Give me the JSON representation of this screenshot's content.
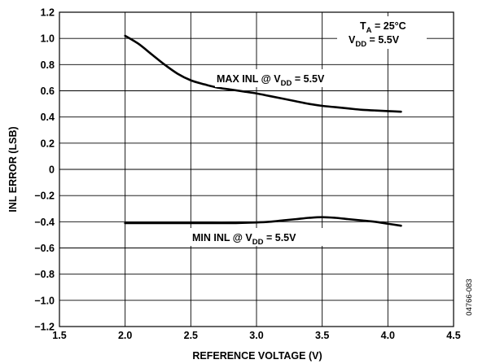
{
  "chart_data": {
    "type": "line",
    "xlabel": "REFERENCE VOLTAGE (V)",
    "ylabel": "INL ERROR (LSB)",
    "xlim": [
      1.5,
      4.5
    ],
    "ylim": [
      -1.2,
      1.2
    ],
    "xticks": [
      1.5,
      2.0,
      2.5,
      3.0,
      3.5,
      4.0,
      4.5
    ],
    "yticks": [
      -1.2,
      -1.0,
      -0.8,
      -0.6,
      -0.4,
      -0.2,
      0,
      0.2,
      0.4,
      0.6,
      0.8,
      1.0,
      1.2
    ],
    "grid": true,
    "series": [
      {
        "name": "MAX INL",
        "x": [
          2.0,
          2.1,
          2.2,
          2.3,
          2.4,
          2.5,
          2.6,
          2.7,
          2.8,
          2.9,
          3.0,
          3.1,
          3.2,
          3.3,
          3.4,
          3.5,
          3.6,
          3.7,
          3.8,
          3.9,
          4.0,
          4.1
        ],
        "y": [
          1.02,
          0.96,
          0.88,
          0.8,
          0.73,
          0.68,
          0.65,
          0.625,
          0.61,
          0.595,
          0.58,
          0.56,
          0.54,
          0.52,
          0.5,
          0.485,
          0.475,
          0.465,
          0.455,
          0.45,
          0.445,
          0.44
        ]
      },
      {
        "name": "MIN INL",
        "x": [
          2.0,
          2.2,
          2.4,
          2.6,
          2.8,
          3.0,
          3.1,
          3.2,
          3.3,
          3.4,
          3.5,
          3.6,
          3.7,
          3.8,
          3.9,
          4.0,
          4.1
        ],
        "y": [
          -0.41,
          -0.41,
          -0.41,
          -0.41,
          -0.41,
          -0.405,
          -0.4,
          -0.39,
          -0.38,
          -0.37,
          -0.365,
          -0.37,
          -0.38,
          -0.39,
          -0.4,
          -0.415,
          -0.43
        ]
      }
    ],
    "annotations": {
      "max_label": {
        "main": "MAX INL @ V",
        "sub": "DD",
        "tail": " = 5.5V"
      },
      "min_label": {
        "main": "MIN INL @ V",
        "sub": "DD",
        "tail": " = 5.5V"
      },
      "conditions": [
        {
          "main": "T",
          "sub": "A",
          "tail": " = 25°C"
        },
        {
          "main": "V",
          "sub": "DD",
          "tail": " = 5.5V"
        }
      ]
    },
    "figure_number": "04766-083"
  }
}
